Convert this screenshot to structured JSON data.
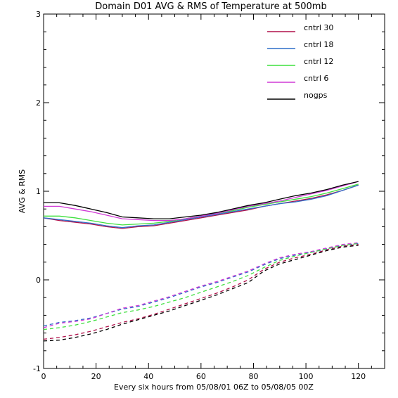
{
  "chart_data": {
    "type": "line",
    "title": "Domain D01 AVG & RMS of Temperature at 500mb",
    "xlabel": "Every six hours from 05/08/01 06Z to 05/08/05 00Z",
    "ylabel": "AVG & RMS",
    "xlim": [
      0,
      130
    ],
    "ylim": [
      -1,
      3
    ],
    "xticks": [
      0,
      20,
      40,
      60,
      80,
      100,
      120
    ],
    "yticks": [
      -1,
      0,
      1,
      2,
      3
    ],
    "legend_position": "top-right",
    "x": [
      0,
      6,
      12,
      18,
      24,
      30,
      36,
      42,
      48,
      54,
      60,
      66,
      72,
      78,
      84,
      90,
      96,
      102,
      108,
      114,
      120
    ],
    "series": [
      {
        "name": "cntrl 30",
        "color": "#b0104a",
        "rms": [
          0.7,
          0.67,
          0.65,
          0.63,
          0.6,
          0.58,
          0.6,
          0.61,
          0.64,
          0.67,
          0.7,
          0.73,
          0.76,
          0.79,
          0.83,
          0.86,
          0.89,
          0.92,
          0.96,
          1.01,
          1.07
        ],
        "avg": [
          -0.67,
          -0.65,
          -0.62,
          -0.58,
          -0.53,
          -0.48,
          -0.44,
          -0.39,
          -0.33,
          -0.27,
          -0.21,
          -0.15,
          -0.08,
          0.0,
          0.12,
          0.2,
          0.25,
          0.29,
          0.34,
          0.38,
          0.4
        ]
      },
      {
        "name": "cntrl 18",
        "color": "#2f6fc9",
        "rms": [
          0.7,
          0.68,
          0.66,
          0.64,
          0.61,
          0.59,
          0.61,
          0.62,
          0.65,
          0.68,
          0.71,
          0.74,
          0.77,
          0.8,
          0.83,
          0.86,
          0.88,
          0.91,
          0.95,
          1.01,
          1.07
        ],
        "avg": [
          -0.52,
          -0.48,
          -0.46,
          -0.43,
          -0.38,
          -0.33,
          -0.3,
          -0.25,
          -0.2,
          -0.14,
          -0.08,
          -0.03,
          0.03,
          0.09,
          0.17,
          0.24,
          0.28,
          0.31,
          0.35,
          0.39,
          0.41
        ]
      },
      {
        "name": "cntrl 12",
        "color": "#3ee03e",
        "rms": [
          0.72,
          0.72,
          0.7,
          0.67,
          0.64,
          0.62,
          0.63,
          0.64,
          0.66,
          0.69,
          0.72,
          0.75,
          0.78,
          0.82,
          0.85,
          0.88,
          0.91,
          0.94,
          0.98,
          1.03,
          1.08
        ],
        "avg": [
          -0.56,
          -0.54,
          -0.51,
          -0.47,
          -0.42,
          -0.37,
          -0.34,
          -0.3,
          -0.25,
          -0.2,
          -0.14,
          -0.08,
          -0.02,
          0.05,
          0.14,
          0.22,
          0.27,
          0.31,
          0.35,
          0.39,
          0.41
        ]
      },
      {
        "name": "cntrl 6",
        "color": "#d03ad6",
        "rms": [
          0.83,
          0.83,
          0.8,
          0.77,
          0.73,
          0.69,
          0.68,
          0.67,
          0.67,
          0.69,
          0.72,
          0.75,
          0.79,
          0.83,
          0.86,
          0.89,
          0.93,
          0.97,
          1.01,
          1.06,
          1.11
        ],
        "avg": [
          -0.54,
          -0.49,
          -0.47,
          -0.44,
          -0.38,
          -0.32,
          -0.29,
          -0.24,
          -0.19,
          -0.13,
          -0.07,
          -0.02,
          0.04,
          0.1,
          0.18,
          0.25,
          0.29,
          0.32,
          0.36,
          0.4,
          0.42
        ]
      },
      {
        "name": "nogps",
        "color": "#000000",
        "rms": [
          0.87,
          0.87,
          0.84,
          0.8,
          0.76,
          0.71,
          0.7,
          0.69,
          0.69,
          0.71,
          0.73,
          0.76,
          0.8,
          0.84,
          0.87,
          0.91,
          0.95,
          0.98,
          1.02,
          1.07,
          1.11
        ],
        "avg": [
          -0.69,
          -0.68,
          -0.65,
          -0.61,
          -0.56,
          -0.5,
          -0.45,
          -0.4,
          -0.35,
          -0.29,
          -0.23,
          -0.17,
          -0.1,
          -0.03,
          0.1,
          0.18,
          0.23,
          0.28,
          0.33,
          0.37,
          0.39
        ]
      }
    ]
  }
}
